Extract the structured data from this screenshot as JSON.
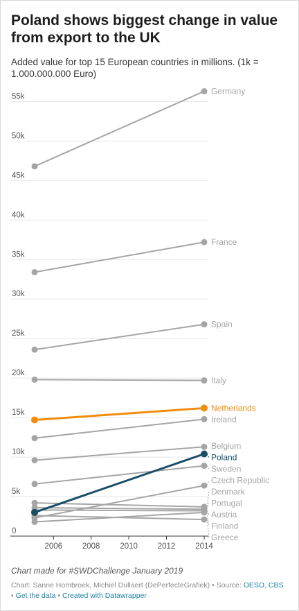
{
  "header": {
    "title": "Poland shows biggest change in value from export to the UK",
    "subtitle": "Added value for top 15 European countries in millions. (1k = 1.000.000.000 Euro)"
  },
  "footer": {
    "note": "Chart made for #SWDChallenge January 2019",
    "source_prefix": "Chart: Sanne Hombroek, Michiel Dullaert (DePerfecteGrafiek) • Source:",
    "source_oeso": "OESO",
    "source_sep": ",",
    "source_cbs": "CBS",
    "bullet1": "•",
    "get_data": "Get the data",
    "bullet2": "•",
    "created": "Created with Datawrapper"
  },
  "colors": {
    "default": "#a5a5a5",
    "netherlands": "#f28c0d",
    "poland": "#1a4e68",
    "grid": "#e6e6e6",
    "axis": "#333333",
    "tick_label": "#555555"
  },
  "chart_data": {
    "type": "slope",
    "x": [
      2005,
      2014
    ],
    "xlim": [
      2005,
      2014
    ],
    "ylim": [
      0,
      56000
    ],
    "x_ticks": [
      "2006",
      "2008",
      "2010",
      "2012",
      "2014"
    ],
    "x_tick_values": [
      2006,
      2008,
      2010,
      2012,
      2014
    ],
    "y_ticks": [
      "0",
      "5k",
      "10k",
      "15k",
      "20k",
      "25k",
      "30k",
      "35k",
      "40k",
      "45k",
      "50k",
      "55k"
    ],
    "y_tick_values": [
      0,
      5000,
      10000,
      15000,
      20000,
      25000,
      30000,
      35000,
      40000,
      45000,
      50000,
      55000
    ],
    "grid": true,
    "series": [
      {
        "name": "Germany",
        "values": [
          46800,
          56300
        ],
        "highlight": "default"
      },
      {
        "name": "France",
        "values": [
          33400,
          37200
        ],
        "highlight": "default"
      },
      {
        "name": "Spain",
        "values": [
          23600,
          26800
        ],
        "highlight": "default"
      },
      {
        "name": "Italy",
        "values": [
          19800,
          19700
        ],
        "highlight": "default"
      },
      {
        "name": "Ireland",
        "values": [
          12400,
          14800
        ],
        "highlight": "default"
      },
      {
        "name": "Belgium",
        "values": [
          9600,
          11300
        ],
        "highlight": "default"
      },
      {
        "name": "Sweden",
        "values": [
          6600,
          8900
        ],
        "highlight": "default"
      },
      {
        "name": "Czech Republic",
        "values": [
          2300,
          6400
        ],
        "highlight": "default"
      },
      {
        "name": "Denmark",
        "values": [
          4200,
          3700
        ],
        "highlight": "default"
      },
      {
        "name": "Portugal",
        "values": [
          3600,
          3400
        ],
        "highlight": "default"
      },
      {
        "name": "Austria",
        "values": [
          3300,
          3200
        ],
        "highlight": "default"
      },
      {
        "name": "Greece",
        "values": [
          2600,
          2100
        ],
        "highlight": "default"
      },
      {
        "name": "Finland",
        "values": [
          1800,
          3000
        ],
        "highlight": "default"
      },
      {
        "name": "Netherlands",
        "values": [
          14700,
          16200
        ],
        "highlight": "netherlands"
      },
      {
        "name": "Poland",
        "values": [
          3000,
          10400
        ],
        "highlight": "poland"
      }
    ],
    "label_order": [
      "Germany",
      "France",
      "Spain",
      "Italy",
      "Netherlands",
      "Ireland",
      "Belgium",
      "Poland",
      "Sweden",
      "Czech Republic",
      "Denmark",
      "Portugal",
      "Austria",
      "Greece",
      "Finland"
    ]
  }
}
